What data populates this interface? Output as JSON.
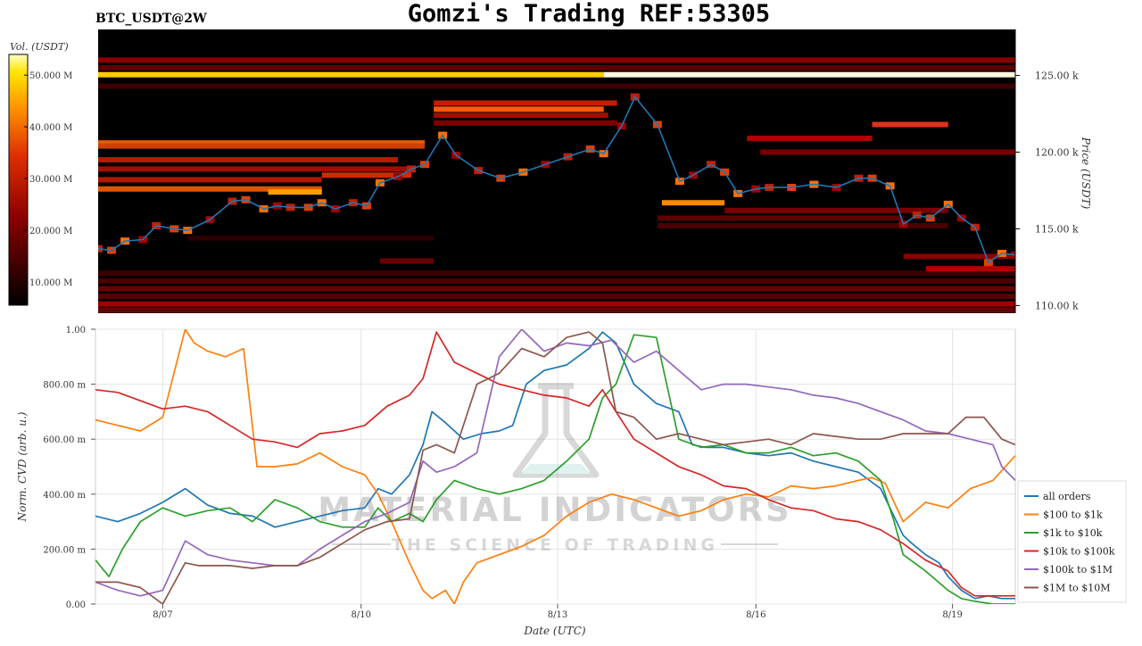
{
  "header": {
    "title": "Gomzi's Trading REF:53305",
    "pair": "BTC_USDT@2W"
  },
  "watermark": {
    "brand": "MATERIAL INDICATORS",
    "tagline": "THE SCIENCE OF TRADING"
  },
  "colors": {
    "price_line": "#1f77b4",
    "heatmap_bg": "#000000",
    "all_orders": "#1f77b4",
    "s100_1k": "#ff7f0e",
    "s1k_10k": "#2ca02c",
    "s10k_100k": "#d62728",
    "s100k_1m": "#9467bd",
    "s1m_10m": "#8c564b"
  },
  "chart_data": [
    {
      "type": "heatmap",
      "ylabel": "Price (USDT)",
      "ylim": [
        109500,
        128000
      ],
      "y_ticks": [
        {
          "value": 110000,
          "label": "110.00 k"
        },
        {
          "value": 115000,
          "label": "115.00 k"
        },
        {
          "value": 120000,
          "label": "120.00 k"
        },
        {
          "value": 125000,
          "label": "125.00 k"
        }
      ],
      "colorbar": {
        "label": "Vol. (USDT)",
        "range": [
          5500000,
          54000000
        ],
        "ticks": [
          {
            "value": 10000000,
            "label": "10.000 M"
          },
          {
            "value": 20000000,
            "label": "20.000 M"
          },
          {
            "value": 30000000,
            "label": "30.000 M"
          },
          {
            "value": 40000000,
            "label": "40.000 M"
          },
          {
            "value": 50000000,
            "label": "50.000 M"
          }
        ]
      },
      "price_series": {
        "x": [
          0,
          0.3,
          0.6,
          1,
          1.3,
          1.7,
          2,
          2.5,
          3,
          3.3,
          3.7,
          4,
          4.3,
          4.7,
          5,
          5.3,
          5.7,
          6,
          6.3,
          6.7,
          7,
          7.3,
          7.7,
          8,
          8.5,
          9,
          9.5,
          10,
          10.5,
          11,
          11.3,
          11.7,
          12,
          12.5,
          13,
          13.3,
          13.7,
          14,
          14.3,
          14.7,
          15,
          15.5,
          16,
          16.5,
          17,
          17.3,
          17.7,
          18,
          18.3,
          18.6,
          19,
          19.3,
          19.6,
          19.9,
          20.2,
          20.5
        ],
        "y": [
          113700,
          113600,
          114200,
          114300,
          115200,
          115000,
          114900,
          115600,
          116800,
          116900,
          116300,
          116500,
          116400,
          116400,
          116700,
          116300,
          116700,
          116500,
          118000,
          118400,
          118900,
          119200,
          121100,
          119800,
          118800,
          118300,
          118700,
          119200,
          119700,
          120200,
          119900,
          121700,
          123600,
          121800,
          118100,
          118500,
          119200,
          118700,
          117300,
          117600,
          117700,
          117700,
          117900,
          117700,
          118300,
          118300,
          117800,
          115300,
          115900,
          115700,
          116600,
          115700,
          115100,
          112800,
          113400,
          113300
        ]
      },
      "x_range": [
        0,
        20.5
      ]
    },
    {
      "type": "line",
      "xlabel": "Date (UTC)",
      "ylabel": "Norm. CVD (arb. u.)",
      "ylim": [
        0,
        1
      ],
      "xlim": [
        0,
        20.5
      ],
      "x_ticks": [
        {
          "value": 1.5,
          "label": "8/07"
        },
        {
          "value": 5.92,
          "label": "8/10"
        },
        {
          "value": 10.3,
          "label": "8/13"
        },
        {
          "value": 14.72,
          "label": "8/16"
        },
        {
          "value": 19.1,
          "label": "8/19"
        }
      ],
      "y_ticks": [
        {
          "value": 0,
          "label": "0.00"
        },
        {
          "value": 0.2,
          "label": "200.00 m"
        },
        {
          "value": 0.4,
          "label": "400.00 m"
        },
        {
          "value": 0.6,
          "label": "600.00 m"
        },
        {
          "value": 0.8,
          "label": "800.00 m"
        },
        {
          "value": 1,
          "label": "1.00"
        }
      ],
      "legend_placement": "lower-right",
      "grid": true,
      "series": [
        {
          "name": "all orders",
          "color_key": "all_orders",
          "x": [
            0,
            0.5,
            1,
            1.5,
            2,
            2.5,
            3,
            3.5,
            4,
            4.5,
            5,
            5.5,
            6,
            6.3,
            6.6,
            7,
            7.3,
            7.5,
            7.8,
            8.2,
            8.6,
            9,
            9.3,
            9.6,
            10,
            10.5,
            11,
            11.3,
            11.6,
            12,
            12.5,
            13,
            13.3,
            13.6,
            14,
            14.5,
            15,
            15.5,
            16,
            16.5,
            17,
            17.5,
            18,
            18.2,
            18.5,
            18.8,
            19,
            19.3,
            19.6,
            19.9,
            20.2,
            20.5
          ],
          "y": [
            0.32,
            0.3,
            0.33,
            0.37,
            0.42,
            0.36,
            0.33,
            0.32,
            0.28,
            0.3,
            0.32,
            0.34,
            0.35,
            0.42,
            0.4,
            0.47,
            0.58,
            0.7,
            0.66,
            0.6,
            0.62,
            0.63,
            0.65,
            0.8,
            0.85,
            0.87,
            0.93,
            0.99,
            0.95,
            0.8,
            0.73,
            0.7,
            0.58,
            0.57,
            0.57,
            0.55,
            0.54,
            0.55,
            0.52,
            0.5,
            0.48,
            0.42,
            0.25,
            0.22,
            0.18,
            0.15,
            0.1,
            0.05,
            0.02,
            0.03,
            0.02,
            0.02
          ]
        },
        {
          "name": "$100 to $1k",
          "color_key": "s100_1k",
          "x": [
            0,
            0.5,
            1,
            1.5,
            2,
            2.2,
            2.5,
            2.9,
            3.3,
            3.6,
            4,
            4.5,
            5,
            5.5,
            6,
            6.3,
            6.6,
            7,
            7.3,
            7.5,
            7.8,
            8,
            8.2,
            8.5,
            9,
            9.5,
            10,
            10.5,
            11,
            11.5,
            12,
            12.5,
            13,
            13.5,
            14,
            14.5,
            15,
            15.5,
            16,
            16.5,
            17,
            17.3,
            17.6,
            18,
            18.5,
            19,
            19.5,
            20,
            20.5
          ],
          "y": [
            0.67,
            0.65,
            0.63,
            0.68,
            1.0,
            0.95,
            0.92,
            0.9,
            0.93,
            0.5,
            0.5,
            0.51,
            0.55,
            0.5,
            0.47,
            0.4,
            0.3,
            0.15,
            0.05,
            0.02,
            0.05,
            0.0,
            0.08,
            0.15,
            0.18,
            0.21,
            0.25,
            0.32,
            0.37,
            0.4,
            0.38,
            0.35,
            0.32,
            0.34,
            0.38,
            0.4,
            0.39,
            0.43,
            0.42,
            0.43,
            0.45,
            0.46,
            0.44,
            0.3,
            0.37,
            0.35,
            0.42,
            0.45,
            0.54
          ]
        },
        {
          "name": "$1k to $10k",
          "color_key": "s1k_10k",
          "x": [
            0,
            0.3,
            0.6,
            1,
            1.5,
            2,
            2.5,
            3,
            3.5,
            4,
            4.5,
            5,
            5.5,
            6,
            6.3,
            6.6,
            7,
            7.3,
            7.6,
            8,
            8.5,
            9,
            9.5,
            10,
            10.5,
            11,
            11.3,
            11.6,
            12,
            12.5,
            13,
            13.5,
            14,
            14.5,
            15,
            15.5,
            16,
            16.5,
            17,
            17.5,
            17.8,
            18,
            18.5,
            19,
            19.3,
            19.6,
            20,
            20.5
          ],
          "y": [
            0.16,
            0.1,
            0.2,
            0.3,
            0.35,
            0.32,
            0.34,
            0.35,
            0.3,
            0.38,
            0.35,
            0.3,
            0.28,
            0.28,
            0.35,
            0.3,
            0.33,
            0.3,
            0.38,
            0.45,
            0.42,
            0.4,
            0.42,
            0.45,
            0.52,
            0.6,
            0.75,
            0.8,
            0.98,
            0.97,
            0.6,
            0.57,
            0.58,
            0.55,
            0.55,
            0.57,
            0.54,
            0.55,
            0.52,
            0.45,
            0.3,
            0.18,
            0.12,
            0.05,
            0.02,
            0.01,
            0.0,
            0.0
          ]
        },
        {
          "name": "$10k to $100k",
          "color_key": "s10k_100k",
          "x": [
            0,
            0.5,
            1,
            1.5,
            2,
            2.5,
            3,
            3.5,
            4,
            4.5,
            5,
            5.5,
            6,
            6.5,
            7,
            7.3,
            7.6,
            8,
            8.5,
            9,
            9.5,
            10,
            10.5,
            11,
            11.3,
            11.6,
            12,
            12.5,
            13,
            13.5,
            14,
            14.5,
            15,
            15.5,
            16,
            16.5,
            17,
            17.5,
            18,
            18.5,
            19,
            19.3,
            19.6,
            20,
            20.5
          ],
          "y": [
            0.78,
            0.77,
            0.74,
            0.71,
            0.72,
            0.7,
            0.65,
            0.6,
            0.59,
            0.57,
            0.62,
            0.63,
            0.65,
            0.72,
            0.76,
            0.82,
            0.99,
            0.88,
            0.84,
            0.8,
            0.78,
            0.76,
            0.75,
            0.72,
            0.78,
            0.7,
            0.6,
            0.55,
            0.5,
            0.47,
            0.43,
            0.42,
            0.38,
            0.35,
            0.34,
            0.31,
            0.3,
            0.27,
            0.22,
            0.16,
            0.12,
            0.06,
            0.03,
            0.03,
            0.03
          ]
        },
        {
          "name": "$100k to $1M",
          "color_key": "s100k_1m",
          "x": [
            0,
            0.5,
            1,
            1.5,
            2,
            2.5,
            3,
            3.5,
            4,
            4.5,
            5,
            5.5,
            6,
            6.5,
            7,
            7.3,
            7.6,
            8,
            8.5,
            9,
            9.5,
            10,
            10.5,
            11,
            11.5,
            12,
            12.5,
            13,
            13.5,
            14,
            14.5,
            15,
            15.5,
            16,
            16.5,
            17,
            17.5,
            18,
            18.5,
            19,
            19.5,
            20,
            20.2,
            20.5
          ],
          "y": [
            0.08,
            0.05,
            0.03,
            0.05,
            0.23,
            0.18,
            0.16,
            0.15,
            0.14,
            0.14,
            0.2,
            0.25,
            0.3,
            0.33,
            0.37,
            0.52,
            0.48,
            0.5,
            0.55,
            0.9,
            1.0,
            0.92,
            0.95,
            0.94,
            0.96,
            0.88,
            0.92,
            0.85,
            0.78,
            0.8,
            0.8,
            0.79,
            0.78,
            0.76,
            0.75,
            0.73,
            0.7,
            0.67,
            0.63,
            0.62,
            0.6,
            0.58,
            0.5,
            0.45
          ]
        },
        {
          "name": "$1M to $10M",
          "color_key": "s1m_10m",
          "x": [
            0,
            0.5,
            1,
            1.5,
            2,
            2.3,
            2.7,
            3,
            3.5,
            4,
            4.5,
            5,
            5.5,
            6,
            6.5,
            7,
            7.3,
            7.6,
            8,
            8.5,
            9,
            9.5,
            10,
            10.5,
            11,
            11.3,
            11.6,
            12,
            12.5,
            13,
            13.5,
            14,
            14.5,
            15,
            15.5,
            16,
            16.5,
            17,
            17.5,
            18,
            18.5,
            19,
            19.4,
            19.8,
            20.2,
            20.5
          ],
          "y": [
            0.08,
            0.08,
            0.06,
            0.0,
            0.15,
            0.14,
            0.14,
            0.14,
            0.13,
            0.14,
            0.14,
            0.17,
            0.22,
            0.27,
            0.3,
            0.31,
            0.56,
            0.58,
            0.55,
            0.8,
            0.84,
            0.93,
            0.9,
            0.97,
            0.99,
            0.95,
            0.7,
            0.68,
            0.6,
            0.62,
            0.6,
            0.58,
            0.59,
            0.6,
            0.58,
            0.62,
            0.61,
            0.6,
            0.6,
            0.62,
            0.62,
            0.62,
            0.68,
            0.68,
            0.6,
            0.58
          ]
        }
      ]
    }
  ]
}
